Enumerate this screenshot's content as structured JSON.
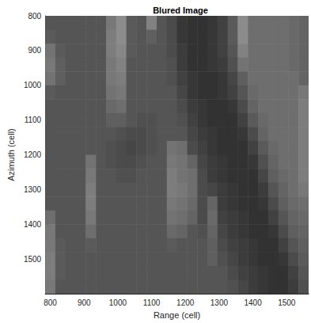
{
  "chart_data": {
    "type": "heatmap",
    "title": "Blured Image",
    "x_label": "Range (cell)",
    "y_label": "Azimuth (cell)",
    "xlim": [
      785,
      1565
    ],
    "ylim": [
      1600,
      800
    ],
    "xticks": [
      800,
      900,
      1000,
      1100,
      1200,
      1300,
      1400,
      1500
    ],
    "yticks": [
      800,
      900,
      1000,
      1100,
      1200,
      1300,
      1400,
      1500
    ],
    "clim": [
      0,
      255
    ],
    "x": [
      800,
      830,
      860,
      890,
      920,
      950,
      980,
      1010,
      1040,
      1070,
      1100,
      1130,
      1160,
      1190,
      1220,
      1250,
      1280,
      1310,
      1340,
      1370,
      1400,
      1430,
      1460,
      1490,
      1520,
      1550
    ],
    "y": [
      820,
      860,
      900,
      940,
      980,
      1020,
      1060,
      1100,
      1140,
      1180,
      1220,
      1260,
      1300,
      1340,
      1380,
      1420,
      1460,
      1500,
      1540,
      1580
    ],
    "cells": [
      [
        85,
        85,
        85,
        85,
        85,
        85,
        120,
        140,
        90,
        85,
        130,
        85,
        75,
        55,
        50,
        50,
        55,
        65,
        90,
        140,
        110,
        110,
        110,
        110,
        105,
        100
      ],
      [
        90,
        85,
        85,
        85,
        85,
        85,
        125,
        140,
        90,
        85,
        95,
        85,
        75,
        55,
        50,
        50,
        55,
        65,
        90,
        140,
        110,
        110,
        110,
        110,
        105,
        100
      ],
      [
        115,
        90,
        85,
        85,
        85,
        85,
        125,
        135,
        90,
        85,
        85,
        85,
        75,
        60,
        50,
        50,
        55,
        65,
        85,
        130,
        110,
        110,
        110,
        110,
        105,
        100
      ],
      [
        120,
        95,
        85,
        85,
        85,
        85,
        120,
        130,
        85,
        85,
        85,
        85,
        80,
        60,
        50,
        50,
        55,
        60,
        80,
        115,
        110,
        110,
        110,
        110,
        105,
        100
      ],
      [
        115,
        95,
        85,
        85,
        85,
        85,
        120,
        125,
        85,
        85,
        85,
        85,
        80,
        65,
        55,
        50,
        50,
        55,
        70,
        95,
        110,
        110,
        110,
        110,
        110,
        100
      ],
      [
        90,
        85,
        85,
        85,
        85,
        85,
        115,
        120,
        85,
        85,
        85,
        85,
        85,
        70,
        55,
        50,
        50,
        55,
        65,
        85,
        105,
        110,
        110,
        110,
        110,
        120
      ],
      [
        85,
        85,
        85,
        85,
        85,
        85,
        105,
        110,
        85,
        85,
        85,
        85,
        85,
        75,
        60,
        55,
        50,
        50,
        55,
        75,
        100,
        110,
        110,
        110,
        110,
        125
      ],
      [
        85,
        85,
        85,
        85,
        85,
        85,
        95,
        95,
        85,
        80,
        80,
        85,
        85,
        80,
        65,
        55,
        50,
        50,
        50,
        65,
        90,
        105,
        110,
        110,
        110,
        125
      ],
      [
        85,
        85,
        85,
        85,
        85,
        85,
        85,
        80,
        75,
        75,
        80,
        85,
        85,
        85,
        70,
        60,
        55,
        50,
        50,
        55,
        75,
        100,
        110,
        110,
        110,
        125
      ],
      [
        85,
        85,
        85,
        85,
        85,
        85,
        80,
        75,
        70,
        75,
        80,
        85,
        115,
        110,
        75,
        65,
        55,
        50,
        50,
        50,
        65,
        90,
        105,
        110,
        110,
        125
      ],
      [
        85,
        85,
        85,
        85,
        115,
        85,
        80,
        75,
        75,
        80,
        85,
        85,
        120,
        115,
        100,
        70,
        60,
        55,
        50,
        50,
        55,
        80,
        100,
        110,
        110,
        125
      ],
      [
        85,
        85,
        85,
        85,
        120,
        85,
        85,
        80,
        80,
        85,
        85,
        85,
        125,
        115,
        110,
        75,
        60,
        55,
        50,
        50,
        50,
        70,
        95,
        105,
        110,
        125
      ],
      [
        85,
        85,
        85,
        85,
        125,
        85,
        85,
        85,
        85,
        85,
        85,
        85,
        125,
        120,
        110,
        75,
        70,
        60,
        55,
        50,
        50,
        60,
        85,
        100,
        110,
        120
      ],
      [
        85,
        85,
        85,
        85,
        125,
        85,
        85,
        85,
        85,
        85,
        85,
        85,
        120,
        115,
        105,
        75,
        100,
        60,
        55,
        50,
        50,
        55,
        75,
        95,
        105,
        110
      ],
      [
        110,
        85,
        85,
        85,
        120,
        85,
        85,
        85,
        85,
        85,
        85,
        85,
        115,
        110,
        100,
        75,
        105,
        65,
        60,
        55,
        50,
        50,
        65,
        85,
        100,
        105
      ],
      [
        120,
        85,
        85,
        85,
        110,
        85,
        85,
        85,
        85,
        85,
        85,
        85,
        105,
        100,
        85,
        80,
        100,
        70,
        60,
        55,
        50,
        50,
        55,
        75,
        95,
        100
      ],
      [
        120,
        90,
        85,
        85,
        90,
        85,
        85,
        85,
        85,
        85,
        85,
        85,
        90,
        85,
        85,
        85,
        95,
        75,
        65,
        60,
        55,
        50,
        50,
        65,
        85,
        95
      ],
      [
        125,
        90,
        85,
        85,
        85,
        85,
        85,
        85,
        85,
        85,
        85,
        85,
        85,
        85,
        85,
        85,
        95,
        80,
        70,
        60,
        55,
        50,
        50,
        55,
        75,
        90
      ],
      [
        125,
        90,
        85,
        85,
        85,
        85,
        85,
        85,
        85,
        85,
        85,
        85,
        85,
        85,
        85,
        85,
        85,
        85,
        75,
        65,
        60,
        55,
        50,
        50,
        65,
        85
      ],
      [
        120,
        85,
        85,
        85,
        85,
        85,
        85,
        85,
        85,
        85,
        85,
        85,
        85,
        85,
        85,
        85,
        85,
        85,
        80,
        70,
        60,
        55,
        50,
        50,
        60,
        80
      ]
    ]
  }
}
